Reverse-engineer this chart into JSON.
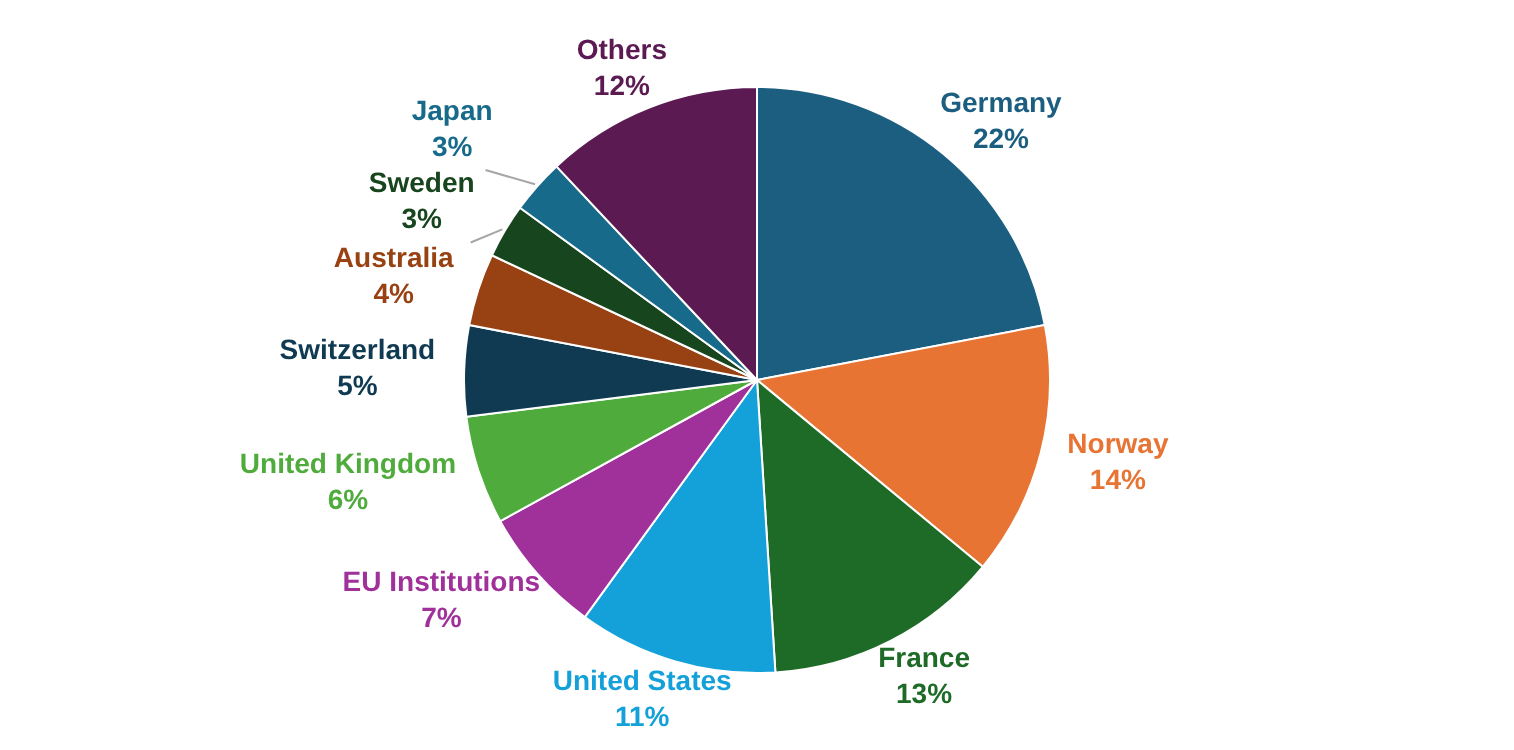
{
  "chart_data": {
    "type": "pie",
    "categories": [
      "Germany",
      "Norway",
      "France",
      "United States",
      "EU Institutions",
      "United Kingdom",
      "Switzerland",
      "Australia",
      "Sweden",
      "Japan",
      "Others"
    ],
    "values": [
      22,
      14,
      13,
      11,
      7,
      6,
      5,
      4,
      3,
      3,
      12
    ],
    "value_labels": [
      "22%",
      "14%",
      "13%",
      "11%",
      "7%",
      "6%",
      "5%",
      "4%",
      "3%",
      "3%",
      "12%"
    ],
    "colors": [
      "#1b5e80",
      "#e87434",
      "#1e6b28",
      "#14a0d8",
      "#a0309a",
      "#4fac3c",
      "#0f3a52",
      "#984214",
      "#17451d",
      "#186a8a",
      "#5c1a52"
    ],
    "legend": false
  }
}
